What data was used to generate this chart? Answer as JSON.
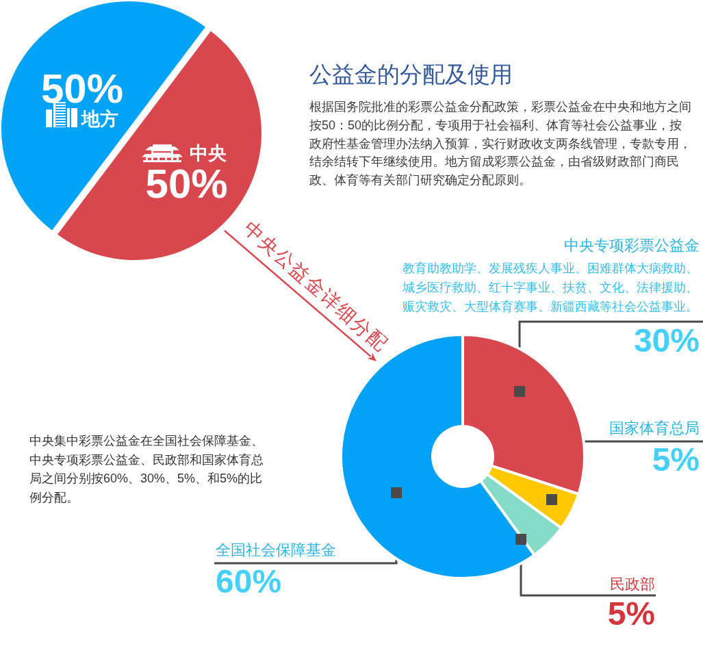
{
  "chart_data": [
    {
      "type": "pie",
      "title": "公益金的分配及使用",
      "annotations": [
        "根据国务院批准的彩票公益金分配政策，彩票公益金在中央和地方之间按50：50的比例分配，专项用于社会福利、体育等社会公益事业，按政府性基金管理办法纳入预算，实行财政收支两条线管理，专款专用，结余结转下年继续使用。地方留成彩票公益金，由省级财政部门商民政、体育等有关部门研究确定分配原则。"
      ],
      "categories": [
        "地方",
        "中央"
      ],
      "values": [
        50,
        50
      ],
      "colors": [
        "#03a3f7",
        "#d9474e"
      ],
      "value_labels": [
        "50%",
        "50%"
      ]
    },
    {
      "type": "donut",
      "annotations": [
        "中央公益金详细分配",
        "教育助教助学、发展残疾人事业、困难群体大病救助、城乡医疗救助、红十字事业、扶贫、文化、法律援助、赈灾救灾、大型体育赛事、新疆西藏等社会公益事业。",
        "中央集中彩票公益金在全国社会保障基金、中央专项彩票公益金、民政部和国家体育总局之间分别按60%、30%、5%、和5%的比例分配。"
      ],
      "categories": [
        "中央专项彩票公益金",
        "国家体育总局",
        "民政部",
        "全国社会保障基金"
      ],
      "values": [
        30,
        5,
        5,
        60
      ],
      "colors": [
        "#d9474e",
        "#ffc700",
        "#84dcc8",
        "#03a2f8"
      ],
      "value_labels": [
        "30%",
        "5%",
        "5%",
        "60%"
      ]
    }
  ]
}
